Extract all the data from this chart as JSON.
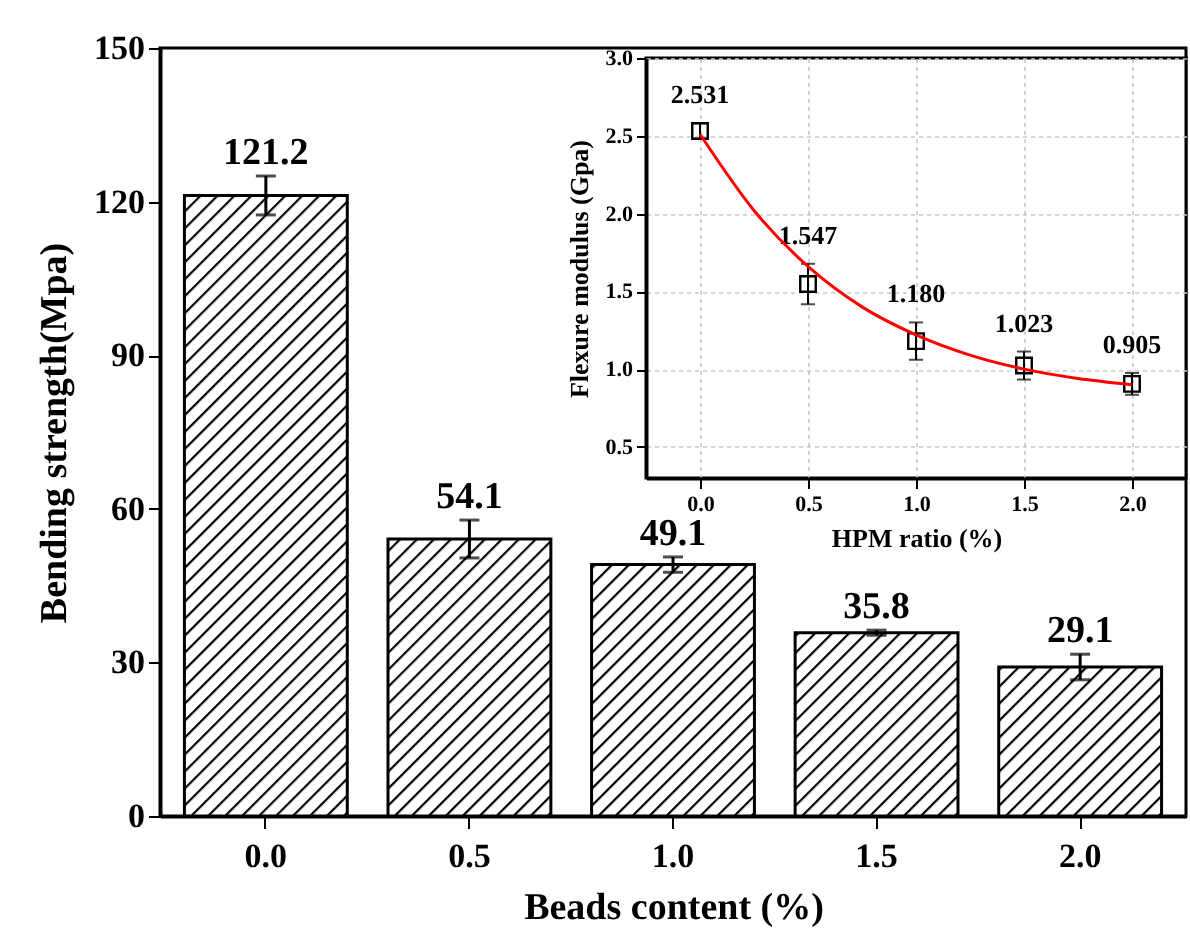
{
  "chart_data": [
    {
      "type": "bar",
      "xlabel": "Beads content (%)",
      "ylabel": "Bending strength(Mpa)",
      "categories": [
        "0.0",
        "0.5",
        "1.0",
        "1.5",
        "2.0"
      ],
      "values": [
        121.2,
        54.1,
        49.1,
        35.8,
        29.1
      ],
      "errors": [
        3.8,
        3.7,
        1.5,
        0.5,
        2.5
      ],
      "color": "#000000",
      "ylim": [
        0,
        150
      ],
      "yticks": [
        0,
        30,
        60,
        90,
        120,
        150
      ],
      "data_labels": true
    },
    {
      "type": "scatter",
      "xlabel": "HPM ratio (%)",
      "ylabel": "Flexure modulus (Gpa)",
      "xlim": [
        -0.25,
        2.25
      ],
      "xticks": [
        {
          "value": 0,
          "label": "0.0"
        },
        {
          "value": 0.5,
          "label": "0.5"
        },
        {
          "value": 1,
          "label": "1.0"
        },
        {
          "value": 1.5,
          "label": "1.5"
        },
        {
          "value": 2,
          "label": "2.0"
        }
      ],
      "ylim": [
        0.3,
        3.0
      ],
      "yticks": [
        {
          "value": 0.5,
          "label": "0.5"
        },
        {
          "value": 1,
          "label": "1.0"
        },
        {
          "value": 1.5,
          "label": "1.5"
        },
        {
          "value": 2,
          "label": "2.0"
        },
        {
          "value": 2.5,
          "label": "2.5"
        },
        {
          "value": 3,
          "label": "3.0"
        }
      ],
      "grid": true,
      "series": [
        {
          "type": "scatter",
          "x": [
            0,
            0.5,
            1,
            1.5,
            2
          ],
          "values": [
            2.531,
            1.547,
            1.18,
            1.023,
            0.905
          ],
          "errors": [
            0.05,
            0.13,
            0.12,
            0.09,
            0.07
          ],
          "value_labels": [
            "2.531",
            "1.547",
            "1.180",
            "1.023",
            "0.905"
          ],
          "color": "#000000",
          "marker": "square"
        },
        {
          "type": "line",
          "x": [
            0,
            0.25,
            0.5,
            0.75,
            1,
            1.25,
            1.5,
            1.75,
            2
          ],
          "values": [
            2.51,
            2.02,
            1.66,
            1.4,
            1.22,
            1.09,
            1.0,
            0.94,
            0.9
          ],
          "color": "#ff0000",
          "marker": "none"
        }
      ]
    }
  ]
}
